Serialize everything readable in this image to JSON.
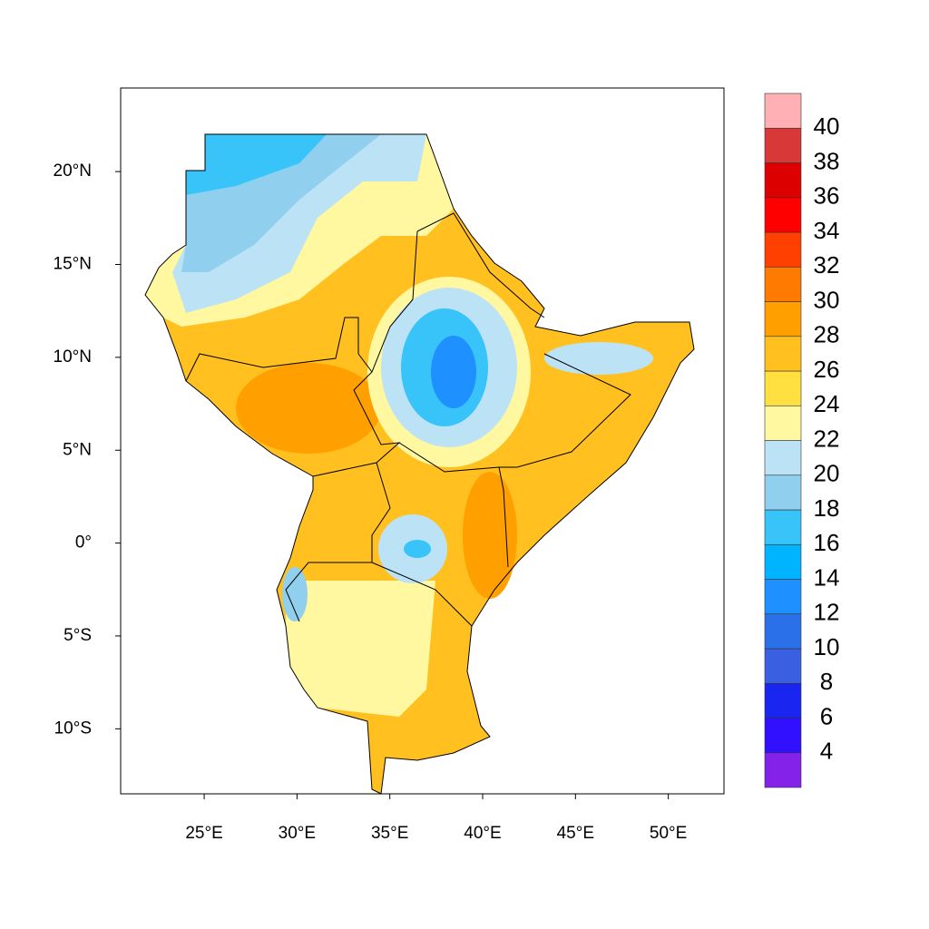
{
  "map": {
    "xlim": [
      20.5,
      53
    ],
    "ylim": [
      -13.5,
      24.5
    ],
    "xticks": [
      {
        "value": 25,
        "label": "25°E"
      },
      {
        "value": 30,
        "label": "30°E"
      },
      {
        "value": 35,
        "label": "35°E"
      },
      {
        "value": 40,
        "label": "40°E"
      },
      {
        "value": 45,
        "label": "45°E"
      },
      {
        "value": 50,
        "label": "50°E"
      }
    ],
    "yticks": [
      {
        "value": 20,
        "label": "20°N"
      },
      {
        "value": 15,
        "label": "15°N"
      },
      {
        "value": 10,
        "label": "10°N"
      },
      {
        "value": 5,
        "label": "5°N"
      },
      {
        "value": 0,
        "label": "0°"
      },
      {
        "value": -5,
        "label": "5°S"
      },
      {
        "value": -10,
        "label": "10°S"
      }
    ],
    "colorbar": {
      "levels": [
        4,
        6,
        8,
        10,
        12,
        14,
        16,
        18,
        20,
        22,
        24,
        26,
        28,
        30,
        32,
        34,
        36,
        38,
        40
      ],
      "colors": [
        "#8422ea",
        "#3010ff",
        "#1a25f0",
        "#3a5fe0",
        "#2a70e8",
        "#1e90ff",
        "#00b4ff",
        "#38c4f8",
        "#90d0ee",
        "#bce2f6",
        "#fff8a0",
        "#ffe040",
        "#ffc020",
        "#ffa000",
        "#ff7a00",
        "#ff4000",
        "#ff0000",
        "#dd0000",
        "#d83838",
        "#ffb0b4"
      ]
    }
  }
}
